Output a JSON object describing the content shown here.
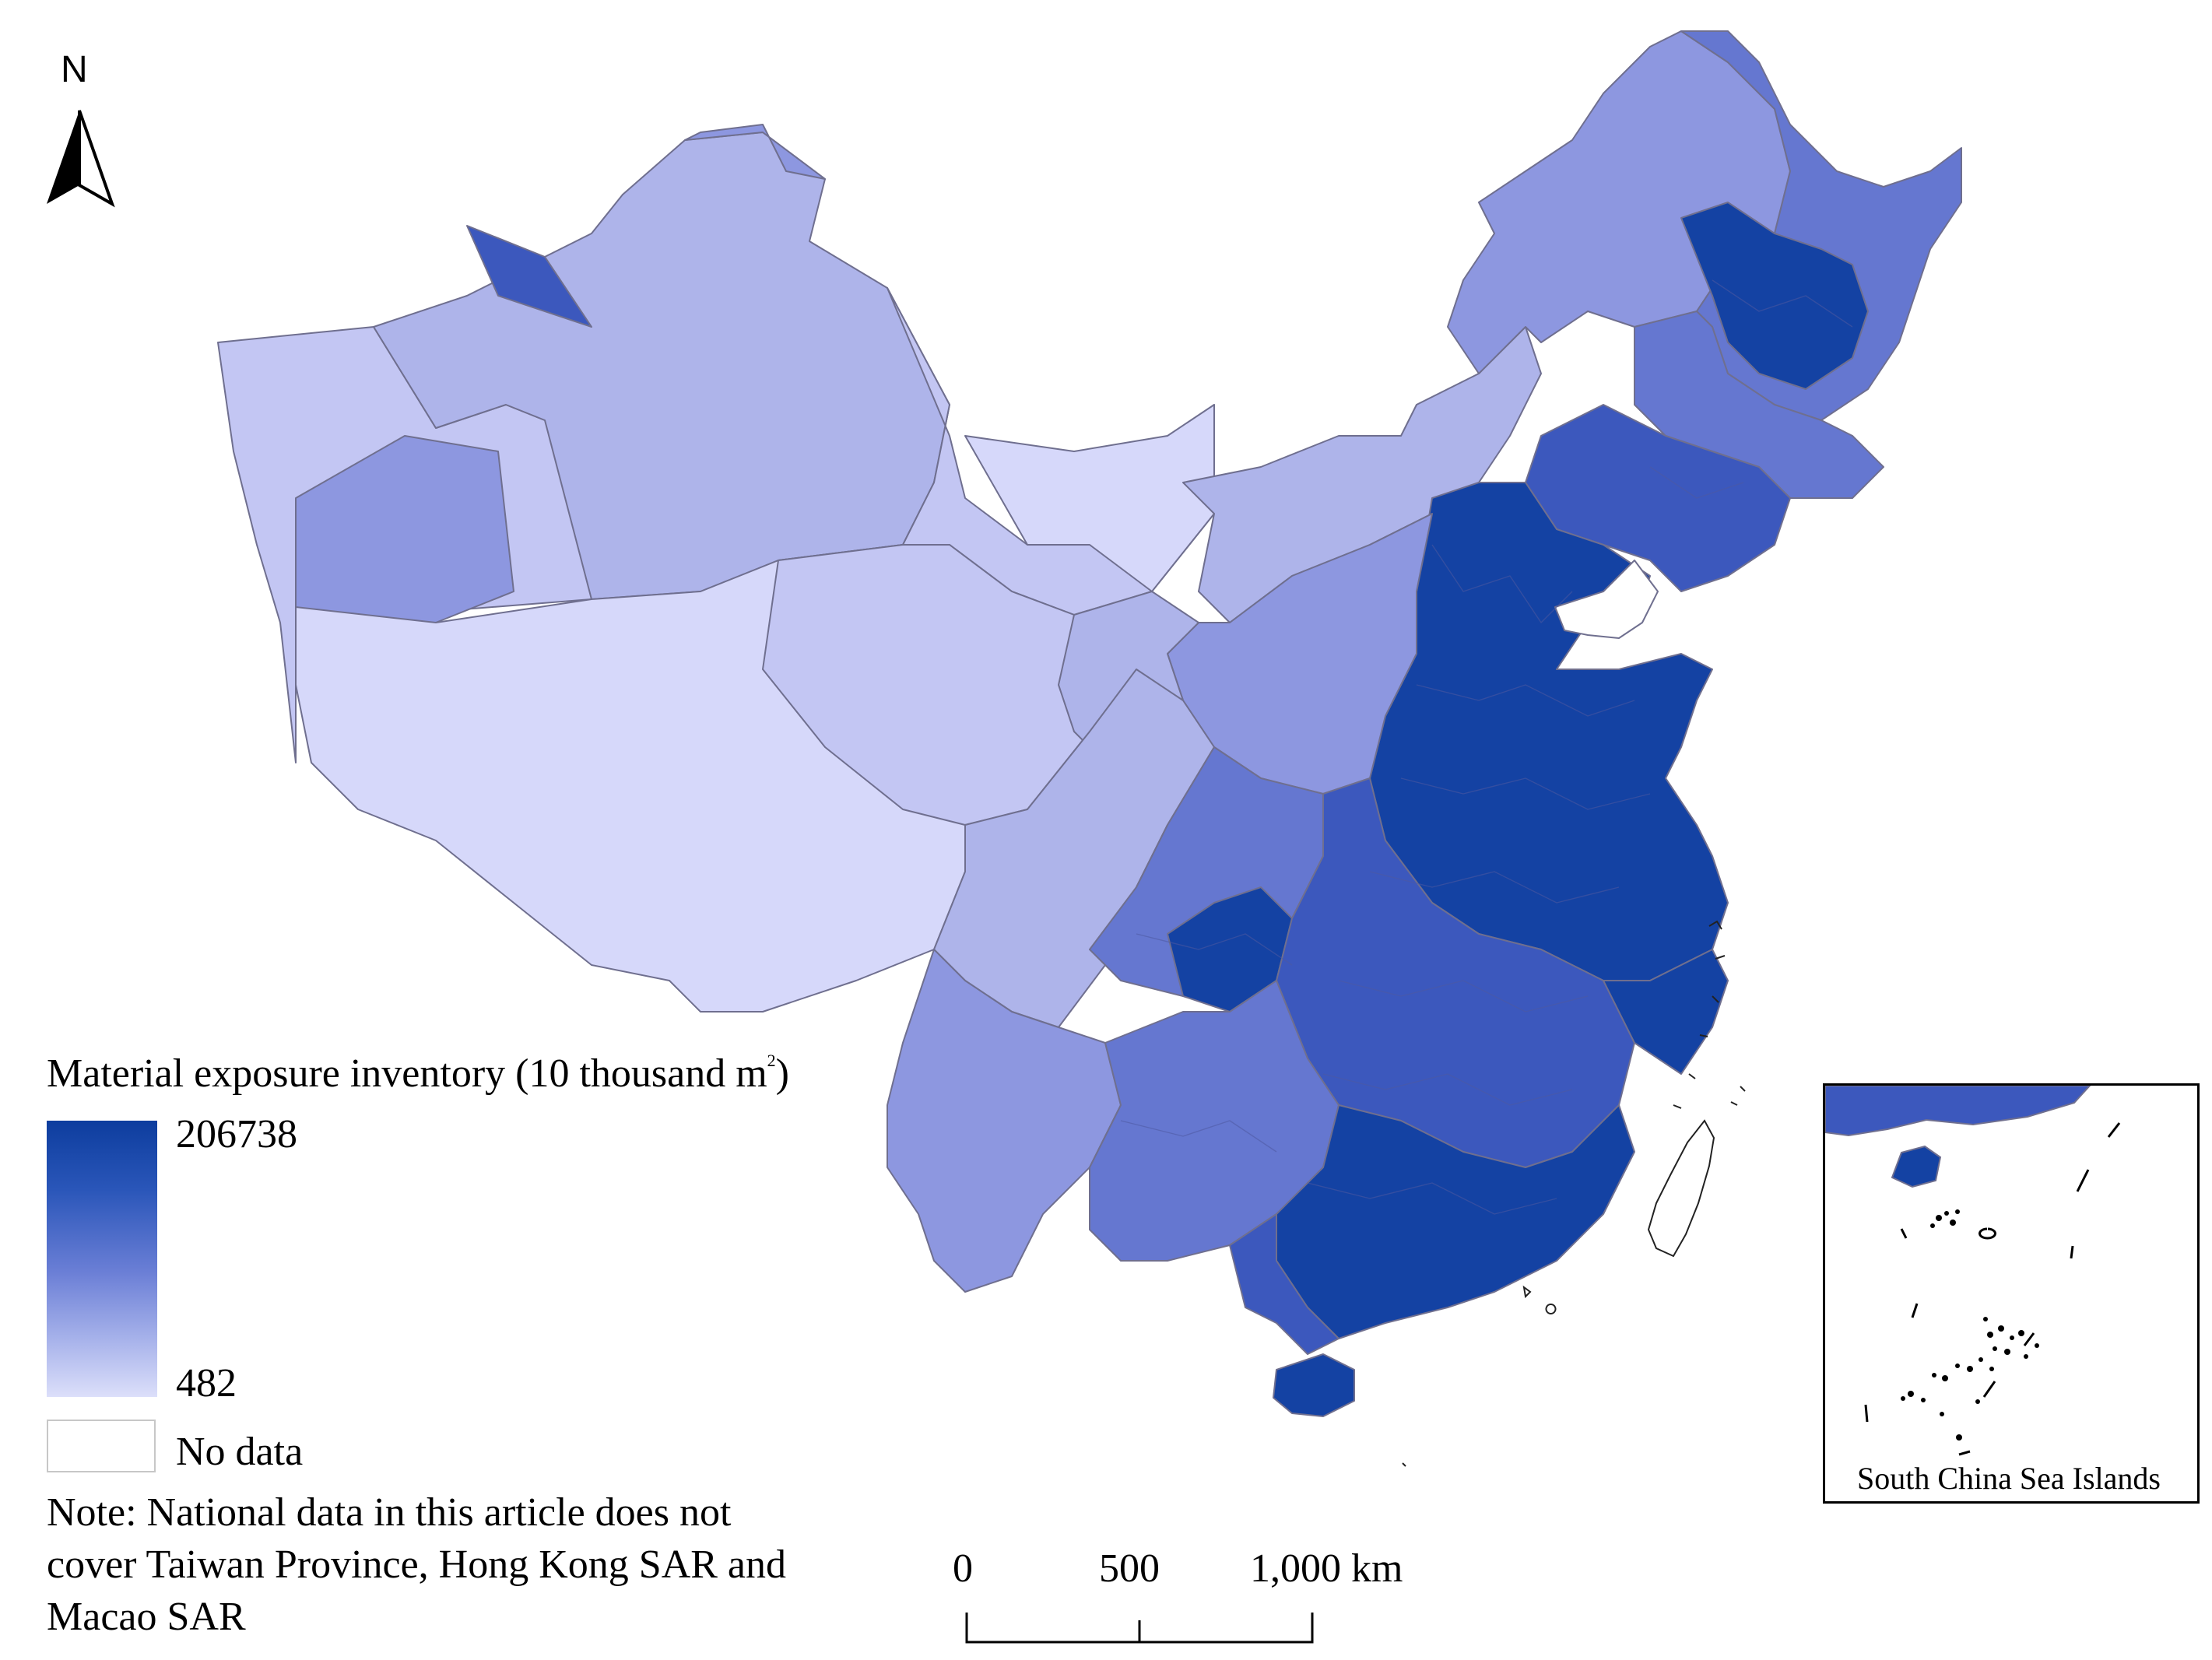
{
  "legend": {
    "title": "Material exposure inventory (10 thousand m",
    "title_sup": "2",
    "title_close": ")",
    "max_label": "206738",
    "min_label": "482",
    "nodata_label": "No data",
    "color_high": "#0d3d9e",
    "color_low": "#dcdffa"
  },
  "note": "Note: National data in this article does not cover Taiwan Province, Hong Kong SAR and Macao SAR",
  "north_label": "N",
  "scale_bar": {
    "labels": [
      "0",
      "500",
      "1,000 km"
    ]
  },
  "inset": {
    "label": "South China Sea Islands"
  },
  "map_colors": {
    "lightest": "#d6d8fa",
    "light": "#c3c6f3",
    "light_mid": "#aeb4ea",
    "mid": "#8d97e0",
    "mid_dark": "#6577d0",
    "dark": "#3c58bd",
    "darkest": "#1442a3",
    "no_data": "#ffffff"
  }
}
